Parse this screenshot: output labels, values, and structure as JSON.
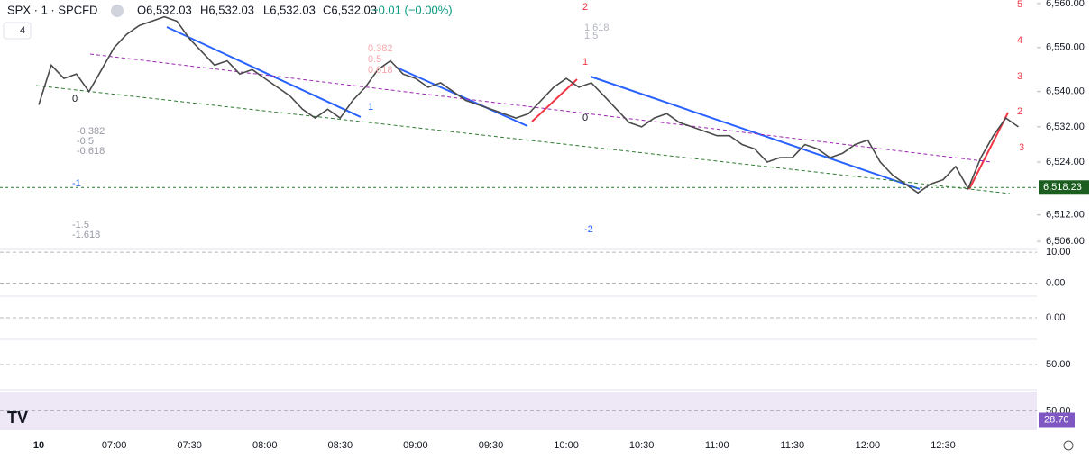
{
  "header": {
    "symbol": "SPX · 1 · SPCFD",
    "badge": "4",
    "open": "O6,532.03",
    "high": "H6,532.03",
    "low": "L6,532.03",
    "close": "C6,532.03",
    "change": "−0.01 (−0.00%)"
  },
  "chart_data": {
    "type": "line",
    "color": "#4a4a4a",
    "categories": [
      "10",
      null,
      null,
      null,
      null,
      null,
      "07:00",
      null,
      null,
      null,
      null,
      null,
      "07:30",
      null,
      null,
      null,
      null,
      null,
      "08:00",
      null,
      null,
      null,
      null,
      null,
      "08:30",
      null,
      null,
      null,
      null,
      null,
      "09:00",
      null,
      null,
      null,
      null,
      null,
      "09:30",
      null,
      null,
      null,
      null,
      null,
      "10:00",
      null,
      null,
      null,
      null,
      null,
      "10:30",
      null,
      null,
      null,
      null,
      null,
      "11:00",
      null,
      null,
      null,
      null,
      null,
      "11:30",
      null,
      null,
      null,
      null,
      null,
      "12:00",
      null,
      null,
      null,
      null,
      null,
      "12:30",
      null,
      null,
      null,
      null,
      null,
      null
    ],
    "values": [
      6537,
      6546,
      6543,
      6544,
      6540,
      6545,
      6550,
      6553,
      6555,
      6556,
      6557,
      6556,
      6552,
      6549,
      6546,
      6547,
      6544,
      6545,
      6543,
      6541,
      6539,
      6536,
      6534,
      6536,
      6534,
      6538,
      6541,
      6545,
      6547,
      6544,
      6543,
      6541,
      6542,
      6540,
      6538,
      6537,
      6536,
      6535,
      6534,
      6535,
      6538,
      6541,
      6543,
      6541,
      6542,
      6539,
      6536,
      6533,
      6532,
      6534,
      6535,
      6533,
      6532,
      6531,
      6530,
      6530,
      6528,
      6527,
      6524,
      6525,
      6525,
      6528,
      6527,
      6525,
      6526,
      6528,
      6529,
      6524,
      6521,
      6519,
      6517,
      6519,
      6520,
      6523,
      6518,
      6525,
      6530,
      6534,
      6532
    ],
    "ylim": [
      6505,
      6561
    ],
    "yticks": [
      {
        "value": 6506,
        "label": "6,506.00"
      },
      {
        "value": 6512,
        "label": "6,512.00"
      },
      {
        "value": 6524,
        "label": "6,524.00"
      },
      {
        "value": 6532,
        "label": "6,532.00"
      },
      {
        "value": 6540,
        "label": "6,540.00"
      },
      {
        "value": 6550,
        "label": "6,550.00"
      },
      {
        "value": 6560,
        "label": "6,560.00"
      }
    ],
    "price_line": {
      "value": 6518.23,
      "label": "6,518.23"
    },
    "annotations": [
      "0",
      "-0.382",
      "-0.5",
      "-0.618",
      "-1",
      "-1.5",
      "-1.618",
      "0.382",
      "0.5",
      "0.618",
      "1",
      "2",
      "3",
      "4",
      "5",
      "1.618",
      "1.5",
      "-2",
      "0",
      "1",
      "2",
      "3"
    ]
  },
  "panes": [
    {
      "ylim": [
        -4.2,
        10.9
      ],
      "yticks": [
        {
          "value": 10,
          "label": "10.00"
        },
        {
          "value": 0,
          "label": "0.00"
        }
      ]
    },
    {
      "ylim": [
        -1,
        1
      ],
      "yticks": [
        {
          "value": 0,
          "label": "0.00"
        }
      ]
    },
    {
      "ylim": [
        0,
        100
      ],
      "yticks": [
        {
          "value": 50,
          "label": "50.00"
        }
      ]
    },
    {
      "ylim": [
        0,
        100
      ],
      "yticks": [
        {
          "value": 50,
          "label": "50.00"
        }
      ],
      "last": {
        "value": 28.7,
        "label": "28.70"
      }
    }
  ]
}
